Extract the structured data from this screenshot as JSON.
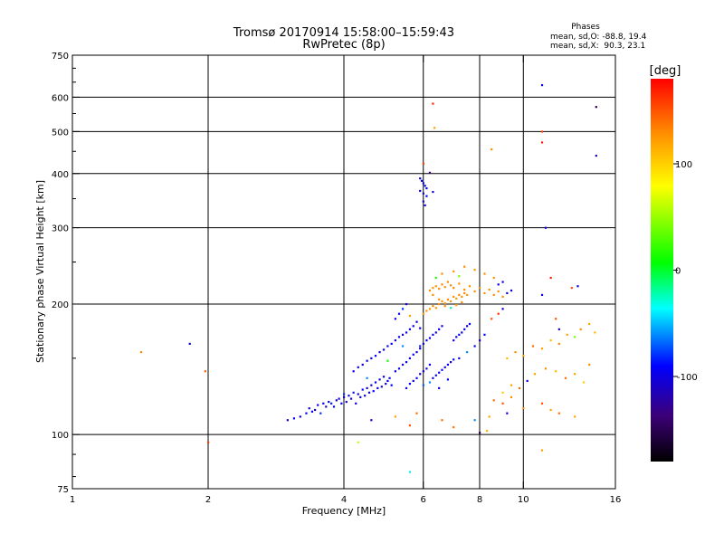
{
  "chart_data": {
    "type": "scatter",
    "title": "Tromsø 20170914 15:58:00–15:59:43",
    "subtitle": "RwPretec (8p)",
    "xlabel": "Frequency [MHz]",
    "ylabel": "Stationary phase Virtual Height [km]",
    "xscale": "log",
    "yscale": "log",
    "xlim": [
      1,
      16
    ],
    "ylim": [
      75,
      750
    ],
    "xticks": [
      1,
      2,
      4,
      6,
      8,
      10,
      16
    ],
    "xtick_labels": [
      "1",
      "2",
      "4",
      "6",
      "8",
      "10",
      "16"
    ],
    "yticks": [
      75,
      100,
      200,
      300,
      400,
      500,
      600,
      750
    ],
    "ytick_labels": [
      "75",
      "100",
      "200",
      "300",
      "400",
      "500",
      "600",
      "750"
    ],
    "stats": {
      "title": "Phases",
      "line1": "mean, sd,O: -88.8, 19.4",
      "line2": "mean, sd,X:  90.3, 23.1"
    },
    "colorbar": {
      "label": "[deg]",
      "range": [
        -180,
        180
      ],
      "ticks": [
        100,
        0,
        -100
      ],
      "tick_labels": [
        "100",
        "0",
        "-100"
      ]
    },
    "points": [
      [
        1.42,
        155,
        130
      ],
      [
        1.82,
        162,
        -100
      ],
      [
        1.97,
        140,
        145
      ],
      [
        2.0,
        96,
        160
      ],
      [
        3.0,
        108,
        -110
      ],
      [
        3.1,
        109,
        -90
      ],
      [
        3.2,
        110,
        -100
      ],
      [
        3.3,
        112,
        -95
      ],
      [
        3.35,
        115,
        -100
      ],
      [
        3.4,
        113,
        -90
      ],
      [
        3.45,
        114,
        -105
      ],
      [
        3.5,
        117,
        -100
      ],
      [
        3.55,
        112,
        -80
      ],
      [
        3.6,
        118,
        -95
      ],
      [
        3.65,
        116,
        -110
      ],
      [
        3.7,
        119,
        -100
      ],
      [
        3.75,
        118,
        -85
      ],
      [
        3.8,
        116,
        -100
      ],
      [
        3.85,
        120,
        -95
      ],
      [
        3.9,
        121,
        -100
      ],
      [
        3.95,
        118,
        -90
      ],
      [
        4.0,
        122,
        -100
      ],
      [
        4.05,
        119,
        -110
      ],
      [
        4.1,
        123,
        -95
      ],
      [
        4.15,
        121,
        -100
      ],
      [
        4.2,
        125,
        -85
      ],
      [
        4.25,
        118,
        -100
      ],
      [
        4.3,
        124,
        -95
      ],
      [
        4.35,
        122,
        -100
      ],
      [
        4.4,
        127,
        -90
      ],
      [
        4.45,
        123,
        -100
      ],
      [
        4.5,
        128,
        -105
      ],
      [
        4.55,
        125,
        -95
      ],
      [
        4.6,
        130,
        -100
      ],
      [
        4.65,
        126,
        -90
      ],
      [
        4.7,
        132,
        -100
      ],
      [
        4.75,
        128,
        -95
      ],
      [
        4.8,
        134,
        -100
      ],
      [
        4.85,
        129,
        -110
      ],
      [
        4.9,
        136,
        -95
      ],
      [
        4.95,
        131,
        -100
      ],
      [
        5.0,
        133,
        -90
      ],
      [
        5.05,
        135,
        -100
      ],
      [
        5.1,
        130,
        -95
      ],
      [
        4.2,
        140,
        -100
      ],
      [
        4.3,
        143,
        -90
      ],
      [
        4.4,
        145,
        -100
      ],
      [
        4.5,
        148,
        -95
      ],
      [
        4.6,
        150,
        -100
      ],
      [
        4.7,
        152,
        -90
      ],
      [
        4.8,
        155,
        -100
      ],
      [
        4.9,
        157,
        -95
      ],
      [
        5.0,
        160,
        -100
      ],
      [
        5.1,
        162,
        -90
      ],
      [
        5.2,
        165,
        -100
      ],
      [
        5.3,
        168,
        -95
      ],
      [
        5.4,
        170,
        -100
      ],
      [
        5.5,
        172,
        -90
      ],
      [
        5.6,
        175,
        -100
      ],
      [
        5.7,
        178,
        -95
      ],
      [
        5.2,
        140,
        -100
      ],
      [
        5.3,
        142,
        -90
      ],
      [
        5.4,
        145,
        -100
      ],
      [
        5.5,
        147,
        -95
      ],
      [
        5.6,
        150,
        -100
      ],
      [
        5.7,
        153,
        -90
      ],
      [
        5.8,
        155,
        -100
      ],
      [
        5.9,
        158,
        -95
      ],
      [
        5.9,
        160,
        -85
      ],
      [
        6.0,
        162,
        -100
      ],
      [
        6.1,
        165,
        -95
      ],
      [
        6.2,
        167,
        -100
      ],
      [
        6.3,
        170,
        -90
      ],
      [
        6.4,
        172,
        -100
      ],
      [
        6.5,
        175,
        -95
      ],
      [
        6.6,
        178,
        -100
      ],
      [
        5.5,
        128,
        -100
      ],
      [
        5.6,
        131,
        -95
      ],
      [
        5.7,
        133,
        -100
      ],
      [
        5.8,
        135,
        -90
      ],
      [
        5.9,
        138,
        -100
      ],
      [
        6.0,
        140,
        -95
      ],
      [
        6.1,
        142,
        -100
      ],
      [
        6.2,
        145,
        -90
      ],
      [
        6.3,
        135,
        -100
      ],
      [
        6.4,
        137,
        -95
      ],
      [
        6.5,
        139,
        -100
      ],
      [
        6.6,
        141,
        -90
      ],
      [
        6.7,
        143,
        -100
      ],
      [
        6.8,
        145,
        -95
      ],
      [
        6.9,
        147,
        -100
      ],
      [
        7.0,
        149,
        -90
      ],
      [
        6.0,
        130,
        -70
      ],
      [
        6.2,
        132,
        -60
      ],
      [
        6.5,
        128,
        -100
      ],
      [
        6.8,
        134,
        -95
      ],
      [
        7.0,
        165,
        -100
      ],
      [
        7.1,
        168,
        -95
      ],
      [
        7.2,
        170,
        -90
      ],
      [
        7.3,
        172,
        -100
      ],
      [
        7.4,
        175,
        -95
      ],
      [
        7.5,
        178,
        -100
      ],
      [
        7.6,
        180,
        -90
      ],
      [
        7.2,
        150,
        -100
      ],
      [
        7.5,
        155,
        -60
      ],
      [
        7.8,
        160,
        -95
      ],
      [
        8.0,
        165,
        -100
      ],
      [
        8.2,
        170,
        -90
      ],
      [
        5.2,
        185,
        -100
      ],
      [
        5.3,
        190,
        -95
      ],
      [
        5.4,
        195,
        -80
      ],
      [
        5.5,
        200,
        -100
      ],
      [
        5.6,
        188,
        120
      ],
      [
        5.8,
        182,
        -100
      ],
      [
        5.9,
        176,
        -90
      ],
      [
        6.0,
        190,
        125
      ],
      [
        6.1,
        193,
        130
      ],
      [
        6.2,
        195,
        128
      ],
      [
        6.3,
        198,
        132
      ],
      [
        6.4,
        196,
        126
      ],
      [
        6.5,
        200,
        130
      ],
      [
        6.6,
        203,
        128
      ],
      [
        6.7,
        201,
        124
      ],
      [
        6.8,
        205,
        130
      ],
      [
        6.9,
        203,
        127
      ],
      [
        7.0,
        208,
        130
      ],
      [
        7.1,
        206,
        125
      ],
      [
        7.2,
        210,
        130
      ],
      [
        7.3,
        208,
        128
      ],
      [
        7.4,
        212,
        132
      ],
      [
        7.5,
        210,
        125
      ],
      [
        6.2,
        215,
        130
      ],
      [
        6.3,
        218,
        128
      ],
      [
        6.4,
        220,
        126
      ],
      [
        6.5,
        217,
        130
      ],
      [
        6.6,
        222,
        132
      ],
      [
        6.7,
        219,
        128
      ],
      [
        6.8,
        225,
        130
      ],
      [
        6.9,
        221,
        127
      ],
      [
        7.0,
        218,
        130
      ],
      [
        7.2,
        223,
        125
      ],
      [
        7.4,
        216,
        130
      ],
      [
        7.6,
        220,
        128
      ],
      [
        7.8,
        214,
        130
      ],
      [
        8.0,
        218,
        126
      ],
      [
        8.2,
        212,
        130
      ],
      [
        8.4,
        216,
        128
      ],
      [
        8.6,
        210,
        130
      ],
      [
        8.8,
        214,
        125
      ],
      [
        9.0,
        208,
        130
      ],
      [
        9.2,
        212,
        -100
      ],
      [
        9.4,
        215,
        -95
      ],
      [
        9.0,
        225,
        -100
      ],
      [
        8.6,
        230,
        128
      ],
      [
        8.2,
        235,
        130
      ],
      [
        7.8,
        240,
        125
      ],
      [
        7.4,
        244,
        130
      ],
      [
        7.0,
        238,
        128
      ],
      [
        6.6,
        235,
        130
      ],
      [
        6.4,
        230,
        15
      ],
      [
        7.2,
        232,
        40
      ],
      [
        8.8,
        222,
        -100
      ],
      [
        6.3,
        210,
        130
      ],
      [
        6.5,
        205,
        128
      ],
      [
        6.7,
        198,
        130
      ],
      [
        6.9,
        196,
        -20
      ],
      [
        7.1,
        199,
        126
      ],
      [
        7.3,
        202,
        130
      ],
      [
        5.9,
        390,
        -100
      ],
      [
        5.95,
        385,
        -95
      ],
      [
        6.0,
        380,
        -100
      ],
      [
        6.05,
        375,
        -90
      ],
      [
        6.1,
        370,
        -100
      ],
      [
        5.9,
        365,
        -95
      ],
      [
        6.0,
        360,
        -100
      ],
      [
        6.1,
        355,
        -90
      ],
      [
        6.0,
        345,
        -100
      ],
      [
        6.05,
        338,
        -95
      ],
      [
        6.2,
        402,
        -140
      ],
      [
        6.0,
        422,
        155
      ],
      [
        6.3,
        363,
        -100
      ],
      [
        6.3,
        580,
        165
      ],
      [
        6.35,
        510,
        120
      ],
      [
        8.5,
        455,
        130
      ],
      [
        11.0,
        640,
        -100
      ],
      [
        11.0,
        500,
        160
      ],
      [
        11.0,
        472,
        170
      ],
      [
        14.5,
        570,
        -150
      ],
      [
        14.5,
        440,
        -120
      ],
      [
        8.0,
        101,
        -150
      ],
      [
        7.0,
        104,
        140
      ],
      [
        8.3,
        102,
        110
      ],
      [
        11.0,
        92,
        120
      ],
      [
        5.6,
        82,
        -40
      ],
      [
        4.3,
        96,
        60
      ],
      [
        6.6,
        108,
        140
      ],
      [
        7.8,
        108,
        -60
      ],
      [
        8.4,
        110,
        120
      ],
      [
        9.2,
        112,
        -100
      ],
      [
        10.0,
        115,
        130
      ],
      [
        11.0,
        118,
        150
      ],
      [
        11.5,
        114,
        120
      ],
      [
        12.0,
        112,
        140
      ],
      [
        13.0,
        110,
        120
      ],
      [
        9.0,
        125,
        100
      ],
      [
        9.4,
        130,
        120
      ],
      [
        9.8,
        128,
        140
      ],
      [
        10.2,
        133,
        -100
      ],
      [
        10.6,
        138,
        120
      ],
      [
        11.2,
        142,
        130
      ],
      [
        11.8,
        140,
        110
      ],
      [
        12.4,
        135,
        140
      ],
      [
        13.0,
        138,
        120
      ],
      [
        13.6,
        132,
        100
      ],
      [
        14.0,
        145,
        130
      ],
      [
        9.2,
        150,
        110
      ],
      [
        9.6,
        155,
        130
      ],
      [
        10.0,
        152,
        120
      ],
      [
        10.5,
        160,
        140
      ],
      [
        11.0,
        158,
        120
      ],
      [
        11.5,
        165,
        110
      ],
      [
        12.0,
        162,
        130
      ],
      [
        12.5,
        170,
        120
      ],
      [
        13.0,
        168,
        40
      ],
      [
        13.4,
        175,
        130
      ],
      [
        14.0,
        180,
        120
      ],
      [
        14.4,
        172,
        110
      ],
      [
        11.0,
        210,
        -100
      ],
      [
        11.2,
        300,
        -100
      ],
      [
        11.5,
        230,
        170
      ],
      [
        12.8,
        218,
        150
      ],
      [
        13.2,
        220,
        -100
      ],
      [
        11.8,
        185,
        150
      ],
      [
        12.0,
        175,
        -100
      ],
      [
        8.5,
        185,
        150
      ],
      [
        8.8,
        190,
        160
      ],
      [
        9.0,
        195,
        -100
      ],
      [
        8.6,
        120,
        140
      ],
      [
        9.0,
        118,
        150
      ],
      [
        9.4,
        122,
        130
      ],
      [
        5.2,
        110,
        120
      ],
      [
        5.6,
        105,
        150
      ],
      [
        5.8,
        112,
        140
      ],
      [
        4.6,
        108,
        -100
      ],
      [
        4.0,
        124,
        -80
      ],
      [
        4.5,
        135,
        -60
      ],
      [
        5.0,
        148,
        10
      ],
      [
        5.4,
        160,
        -60
      ]
    ]
  }
}
